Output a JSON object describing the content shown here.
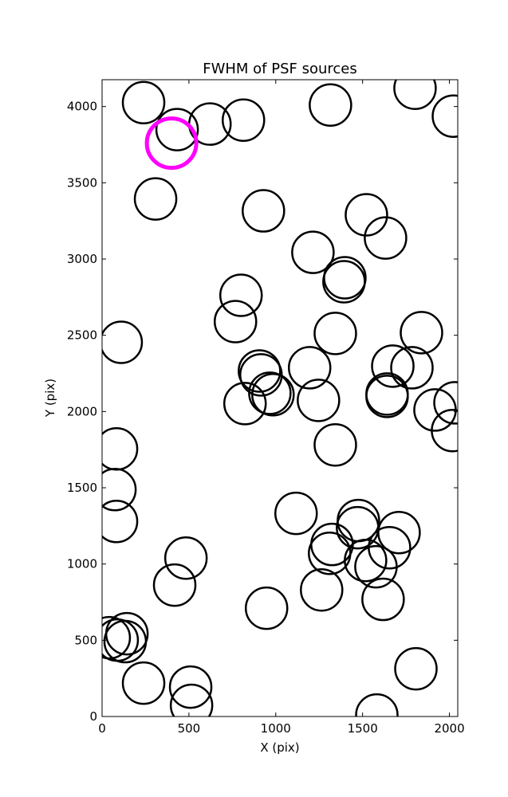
{
  "chart_data": {
    "type": "scatter",
    "title": "FWHM of PSF sources",
    "x_label": "X (pix)",
    "y_label": "Y (pix)",
    "xlim": [
      0,
      2048
    ],
    "ylim": [
      0,
      4176
    ],
    "xticks": [
      0,
      500,
      1000,
      1500,
      2000
    ],
    "yticks": [
      0,
      500,
      1000,
      1500,
      2000,
      2500,
      3000,
      3500,
      4000
    ],
    "series": [
      {
        "color": "#000000",
        "x": [
          239,
          432,
          621,
          814,
          1315,
          1802,
          2023,
          308,
          929,
          1522,
          1632,
          1214,
          1398,
          1393,
          800,
          768,
          110,
          1343,
          1839,
          906,
          915,
          1195,
          1674,
          1784,
          966,
          984,
          1641,
          1641,
          823,
          1246,
          1917,
          2032,
          2018,
          1343,
          83,
          74,
          83,
          1117,
          1476,
          1471,
          1710,
          1324,
          1310,
          1655,
          1517,
          1577,
          483,
          418,
          1618,
          1264,
          947,
          143,
          41,
          87,
          133,
          239,
          510,
          515,
          1807,
          1582
        ],
        "y": [
          4026,
          3849,
          3885,
          3911,
          4010,
          4120,
          3937,
          3394,
          3316,
          3290,
          3138,
          3044,
          2877,
          2851,
          2762,
          2590,
          2454,
          2512,
          2517,
          2266,
          2240,
          2287,
          2298,
          2287,
          2120,
          2110,
          2115,
          2099,
          2052,
          2073,
          2010,
          2057,
          1875,
          1781,
          1755,
          1488,
          1279,
          1332,
          1285,
          1238,
          1206,
          1128,
          1070,
          1107,
          1023,
          982,
          1039,
          862,
          768,
          830,
          710,
          543,
          517,
          501,
          491,
          219,
          193,
          73,
          313,
          10
        ]
      },
      {
        "color": "#ff00ff",
        "x": [
          400
        ],
        "y": [
          3760
        ]
      }
    ]
  }
}
